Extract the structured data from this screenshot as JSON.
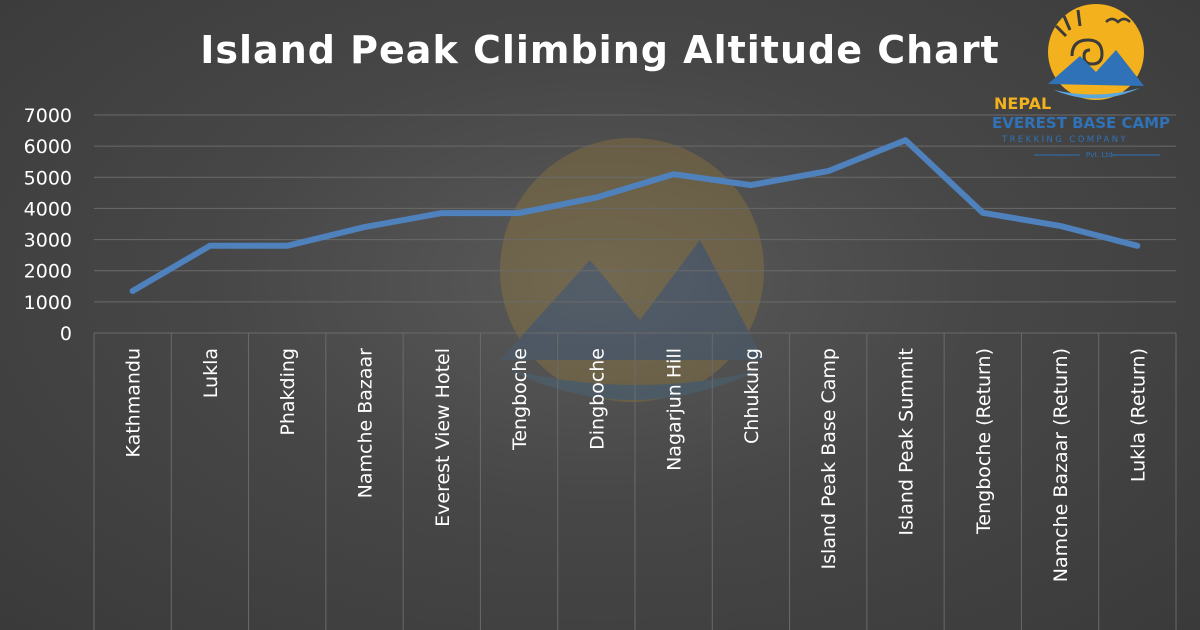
{
  "chart_data": {
    "type": "line",
    "title": "Island Peak Climbing Altitude Chart",
    "xlabel": "",
    "ylabel": "",
    "ylim": [
      0,
      7000
    ],
    "yticks": [
      0,
      1000,
      2000,
      3000,
      4000,
      5000,
      6000,
      7000
    ],
    "grid": true,
    "categories": [
      "Kathmandu",
      "Lukla",
      "Phakding",
      "Namche Bazaar",
      "Everest View Hotel",
      "Tengboche",
      "Dingboche",
      "Nagarjun Hill",
      "Chhukung",
      "Island Peak Base Camp",
      "Island Peak Summit",
      "Tengboche (Return)",
      "Namche Bazaar (Return)",
      "Lukla (Return)"
    ],
    "series": [
      {
        "values": [
          1350,
          2800,
          2800,
          3400,
          3850,
          3850,
          4350,
          5100,
          4750,
          5200,
          6190,
          3860,
          3440,
          2800
        ]
      }
    ],
    "line_color": "#4f81bd"
  },
  "logo": {
    "line1": "NEPAL",
    "line2": "EVEREST BASE CAMP",
    "line3": "TREKKING COMPANY",
    "line4": "Pvt. Ltd."
  },
  "colors": {
    "background": "#474747",
    "grid": "#6a6a6a",
    "logo_sun": "#f3b11d",
    "logo_blue": "#2f72b8"
  }
}
